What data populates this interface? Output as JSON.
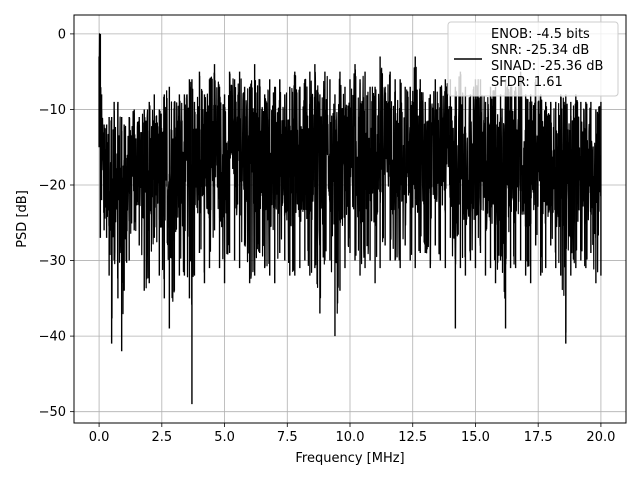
{
  "chart_data": {
    "type": "line",
    "title": "",
    "xlabel": "Frequency [MHz]",
    "ylabel": "PSD [dB]",
    "xlim": [
      -1.0,
      21.0
    ],
    "ylim": [
      -51.5,
      2.5
    ],
    "xticks": [
      0.0,
      2.5,
      5.0,
      7.5,
      10.0,
      12.5,
      15.0,
      17.5,
      20.0
    ],
    "xtick_labels": [
      "0.0",
      "2.5",
      "5.0",
      "7.5",
      "10.0",
      "12.5",
      "15.0",
      "17.5",
      "20.0"
    ],
    "yticks": [
      0,
      -10,
      -20,
      -30,
      -40,
      -50
    ],
    "ytick_labels": [
      "0",
      "−10",
      "−20",
      "−30",
      "−40",
      "−50"
    ],
    "grid": true,
    "legend_position": "top-right",
    "series": [
      {
        "name": "",
        "color": "#000000",
        "description": "",
        "x": [
          0.0,
          0.05,
          0.1,
          0.2,
          0.3,
          0.4,
          0.5,
          0.6,
          0.75,
          0.9,
          1.0,
          1.2,
          1.4,
          1.6,
          1.8,
          2.0,
          2.2,
          2.4,
          2.6,
          2.8,
          3.0,
          3.2,
          3.4,
          3.6,
          3.7,
          3.8,
          4.0,
          4.2,
          4.4,
          4.6,
          4.8,
          5.0,
          5.2,
          5.4,
          5.6,
          5.8,
          6.0,
          6.2,
          6.4,
          6.6,
          6.8,
          7.0,
          7.2,
          7.4,
          7.6,
          7.8,
          8.0,
          8.2,
          8.4,
          8.6,
          8.8,
          9.0,
          9.2,
          9.4,
          9.6,
          9.8,
          10.0,
          10.2,
          10.4,
          10.6,
          10.8,
          11.0,
          11.2,
          11.4,
          11.6,
          11.8,
          12.0,
          12.2,
          12.4,
          12.6,
          12.8,
          13.0,
          13.2,
          13.4,
          13.6,
          13.8,
          14.0,
          14.2,
          14.4,
          14.6,
          14.8,
          15.0,
          15.2,
          15.4,
          15.6,
          15.8,
          16.0,
          16.2,
          16.4,
          16.6,
          16.8,
          17.0,
          17.2,
          17.4,
          17.6,
          17.8,
          18.0,
          18.2,
          18.4,
          18.6,
          18.8,
          19.0,
          19.2,
          19.4,
          19.6,
          19.8,
          20.0
        ],
        "upper": [
          -3,
          0,
          -8,
          -12,
          -12,
          -11,
          -11,
          -9,
          -9,
          -11,
          -12,
          -11,
          -10,
          -11,
          -10,
          -9,
          -8,
          -10,
          -8,
          -7,
          -9,
          -8,
          -8,
          -6,
          -6,
          -9,
          -5,
          -8,
          -6,
          -4,
          -7,
          -8,
          -5,
          -6,
          -5,
          -7,
          -7,
          -4,
          -6,
          -8,
          -6,
          -7,
          -6,
          -8,
          -7,
          -5,
          -7,
          -6,
          -5,
          -4,
          -8,
          -5,
          -6,
          -8,
          -5,
          -7,
          -6,
          -4,
          -6,
          -5,
          -7,
          -7,
          -3,
          -7,
          -5,
          -6,
          -6,
          -7,
          -7,
          -3,
          -6,
          -9,
          -8,
          -6,
          -7,
          -6,
          -6,
          -7,
          -5,
          -7,
          -8,
          -6,
          -6,
          -9,
          -7,
          -7,
          -8,
          -6,
          -7,
          -7,
          -5,
          -8,
          -8,
          -6,
          -8,
          -9,
          -9,
          -9,
          -8,
          -8,
          -9,
          -8,
          -9,
          -9,
          -9,
          -10,
          -9
        ],
        "lower": [
          -15,
          -27,
          -22,
          -26,
          -27,
          -32,
          -41,
          -30,
          -35,
          -42,
          -34,
          -30,
          -26,
          -28,
          -34,
          -33,
          -27,
          -32,
          -35,
          -39,
          -34,
          -32,
          -32,
          -35,
          -49,
          -32,
          -29,
          -33,
          -31,
          -26,
          -31,
          -33,
          -29,
          -30,
          -31,
          -28,
          -33,
          -32,
          -29,
          -31,
          -32,
          -33,
          -29,
          -30,
          -32,
          -32,
          -31,
          -30,
          -32,
          -31,
          -37,
          -30,
          -30,
          -40,
          -34,
          -31,
          -29,
          -30,
          -32,
          -31,
          -30,
          -33,
          -31,
          -28,
          -30,
          -30,
          -31,
          -28,
          -30,
          -31,
          -29,
          -29,
          -31,
          -28,
          -30,
          -31,
          -27,
          -39,
          -31,
          -32,
          -30,
          -31,
          -29,
          -32,
          -31,
          -33,
          -30,
          -39,
          -31,
          -31,
          -30,
          -32,
          -33,
          -28,
          -32,
          -31,
          -28,
          -31,
          -32,
          -41,
          -32,
          -31,
          -30,
          -31,
          -29,
          -33,
          -32
        ]
      }
    ],
    "legend": {
      "lines": [
        "ENOB: -4.5 bits",
        "SNR: -25.34 dB",
        "SINAD: -25.36 dB",
        "SFDR: 1.61"
      ]
    }
  }
}
